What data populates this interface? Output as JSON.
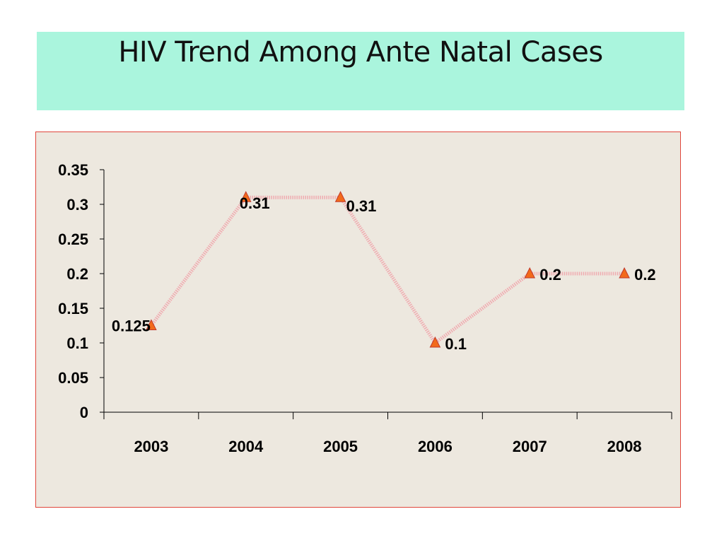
{
  "slide": {
    "title": "HIV Trend Among Ante Natal Cases"
  },
  "colors": {
    "title_background": "#aaf5dd",
    "chart_background": "#ede8df",
    "chart_border": "#e0463b",
    "line": "#f0a0a8",
    "marker_fill": "#f26a1b",
    "marker_stroke": "#c0392b"
  },
  "chart_data": {
    "type": "line",
    "title": "",
    "xlabel": "",
    "ylabel": "",
    "categories": [
      "2003",
      "2004",
      "2005",
      "2006",
      "2007",
      "2008"
    ],
    "series": [
      {
        "values": [
          0.125,
          0.31,
          0.31,
          0.1,
          0.2,
          0.2
        ],
        "data_labels": [
          "0.125",
          "0.31",
          "0.31",
          "0.1",
          "0.2",
          "0.2"
        ],
        "marker": "triangle",
        "line_style": "dotted"
      }
    ],
    "y_ticks": [
      "0",
      "0.05",
      "0.1",
      "0.15",
      "0.2",
      "0.25",
      "0.3",
      "0.35"
    ],
    "ylim": [
      0,
      0.35
    ],
    "grid": false,
    "legend": "none"
  }
}
